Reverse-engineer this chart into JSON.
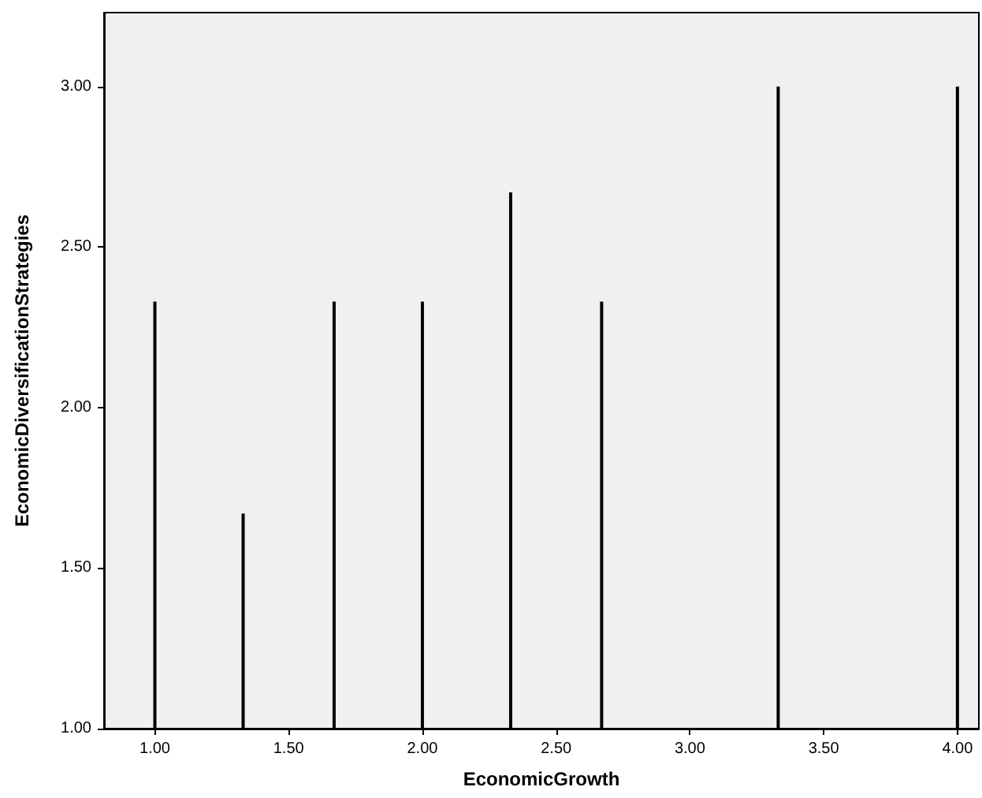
{
  "chart_data": {
    "type": "bar",
    "xlabel": "EconomicGrowth",
    "ylabel": "EconomicDiversificationStrategies",
    "x": [
      1.0,
      1.33,
      1.67,
      2.0,
      2.33,
      2.67,
      3.33,
      4.0
    ],
    "values": [
      2.33,
      1.67,
      2.33,
      2.33,
      2.67,
      2.33,
      3.0,
      3.0
    ],
    "color": "#000000",
    "xlim": [
      0.81,
      4.08
    ],
    "xticks": [
      {
        "value": 1,
        "label": "1.00"
      },
      {
        "value": 1.5,
        "label": "1.50"
      },
      {
        "value": 2,
        "label": "2.00"
      },
      {
        "value": 2.5,
        "label": "2.50"
      },
      {
        "value": 3,
        "label": "3.00"
      },
      {
        "value": 3.5,
        "label": "3.50"
      },
      {
        "value": 4,
        "label": "4.00"
      }
    ],
    "ylim": [
      1,
      3.23
    ],
    "yticks": [
      {
        "value": 1,
        "label": "1.00"
      },
      {
        "value": 1.5,
        "label": "1.50"
      },
      {
        "value": 2,
        "label": "2.00"
      },
      {
        "value": 2.5,
        "label": "2.50"
      },
      {
        "value": 3,
        "label": "3.00"
      }
    ],
    "grid": false
  }
}
